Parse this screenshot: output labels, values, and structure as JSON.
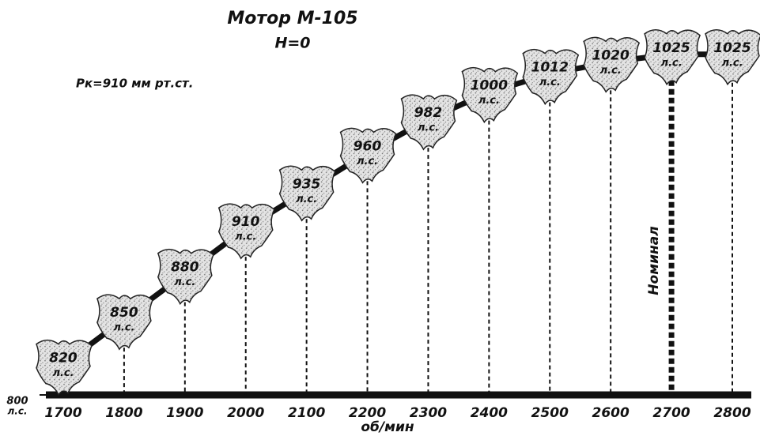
{
  "chart_data": {
    "type": "line",
    "title": "Мотор М-105",
    "subtitle": "H=0",
    "annotation": "Pк=910 мм рт.ст.",
    "xlabel": "об/мин",
    "ylabel": "л.с.",
    "value_unit": "л.с.",
    "x": [
      1700,
      1800,
      1900,
      2000,
      2100,
      2200,
      2300,
      2400,
      2500,
      2600,
      2700,
      2800
    ],
    "values": [
      820,
      850,
      880,
      910,
      935,
      960,
      982,
      1000,
      1012,
      1020,
      1025,
      1025
    ],
    "xlim": [
      1700,
      2800
    ],
    "xticks": [
      1700,
      1800,
      1900,
      2000,
      2100,
      2200,
      2300,
      2400,
      2500,
      2600,
      2700,
      2800
    ],
    "ylim": [
      800,
      1040
    ],
    "yticks": [
      800
    ],
    "nominal": {
      "x": 2700,
      "label": "Номинал"
    },
    "color": "#111111"
  }
}
